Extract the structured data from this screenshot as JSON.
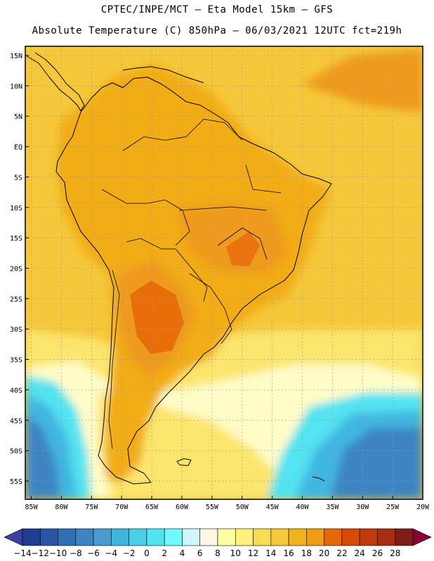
{
  "header": {
    "line1": "CPTEC/INPE/MCT –  Eta Model 15km – GFS",
    "line2": "Absolute Temperature (C) 850hPa – 06/03/2021 12UTC fct=219h"
  },
  "map": {
    "lat_labels": [
      "15N",
      "10N",
      "5N",
      "EQ",
      "5S",
      "10S",
      "15S",
      "20S",
      "25S",
      "30S",
      "35S",
      "40S",
      "45S",
      "50S",
      "55S"
    ],
    "lat_values": [
      15,
      10,
      5,
      0,
      -5,
      -10,
      -15,
      -20,
      -25,
      -30,
      -35,
      -40,
      -45,
      -50,
      -55
    ],
    "lon_labels": [
      "85W",
      "80W",
      "75W",
      "70W",
      "65W",
      "60W",
      "55W",
      "50W",
      "45W",
      "40W",
      "35W",
      "30W",
      "25W",
      "20W"
    ],
    "lon_values": [
      -85,
      -80,
      -75,
      -70,
      -65,
      -60,
      -55,
      -50,
      -45,
      -40,
      -35,
      -30,
      -25,
      -20
    ],
    "extent": {
      "lon_min": -86,
      "lon_max": -20,
      "lat_min": -58,
      "lat_max": 16.5
    }
  },
  "colorbar": {
    "labels": [
      "-14",
      "-12",
      "-10",
      "-8",
      "-6",
      "-4",
      "-2",
      "0",
      "2",
      "4",
      "6",
      "8",
      "10",
      "12",
      "14",
      "16",
      "18",
      "20",
      "22",
      "24",
      "26",
      "28"
    ],
    "colors": {
      "under": "#3a3fa0",
      "bins": [
        "#213d8f",
        "#2a57a3",
        "#3170b3",
        "#3c85c2",
        "#4a9bd0",
        "#3fb6e0",
        "#4bcfe9",
        "#52e3f1",
        "#6ffaff",
        "#cdf7fb",
        "#fff7e3",
        "#fffea3",
        "#fdf07b",
        "#f9dc55",
        "#f4c93a",
        "#f0b31c",
        "#ef9d15",
        "#e76607",
        "#d64c06",
        "#c1390d",
        "#a72d13",
        "#7d1e19"
      ],
      "over": "#8b0036"
    }
  },
  "fields": {
    "land_warm": "#f2ac13",
    "land_hot": "#ee9a1b",
    "ocean_warm": "#f5c73a",
    "ocean_mild": "#fce56d",
    "cool": "#fffcc8",
    "cold_1": "#52e3f1",
    "cold_2": "#3fb6e0",
    "cold_3": "#3c85c2"
  }
}
